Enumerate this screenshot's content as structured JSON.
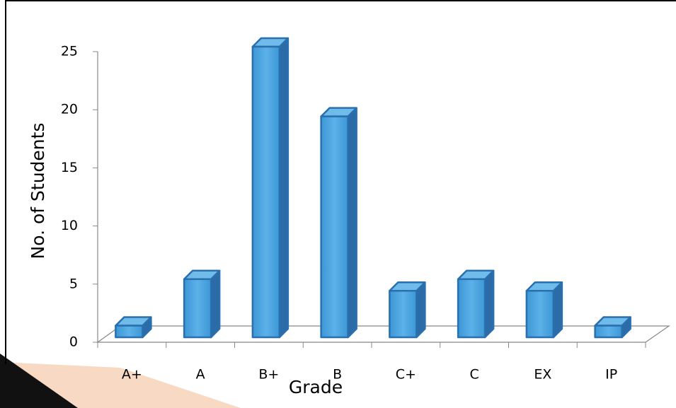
{
  "chart_data": {
    "type": "bar3d",
    "x_label": "Grade",
    "y_label": "No. of Students",
    "categories": [
      "A+",
      "A",
      "B+",
      "B",
      "C+",
      "C",
      "EX",
      "IP"
    ],
    "values": [
      1,
      5,
      25,
      19,
      4,
      5,
      4,
      1
    ],
    "color": "#4ea6df",
    "ylim": [
      0,
      25
    ],
    "yticks": [
      0,
      5,
      10,
      15,
      20,
      25
    ]
  }
}
